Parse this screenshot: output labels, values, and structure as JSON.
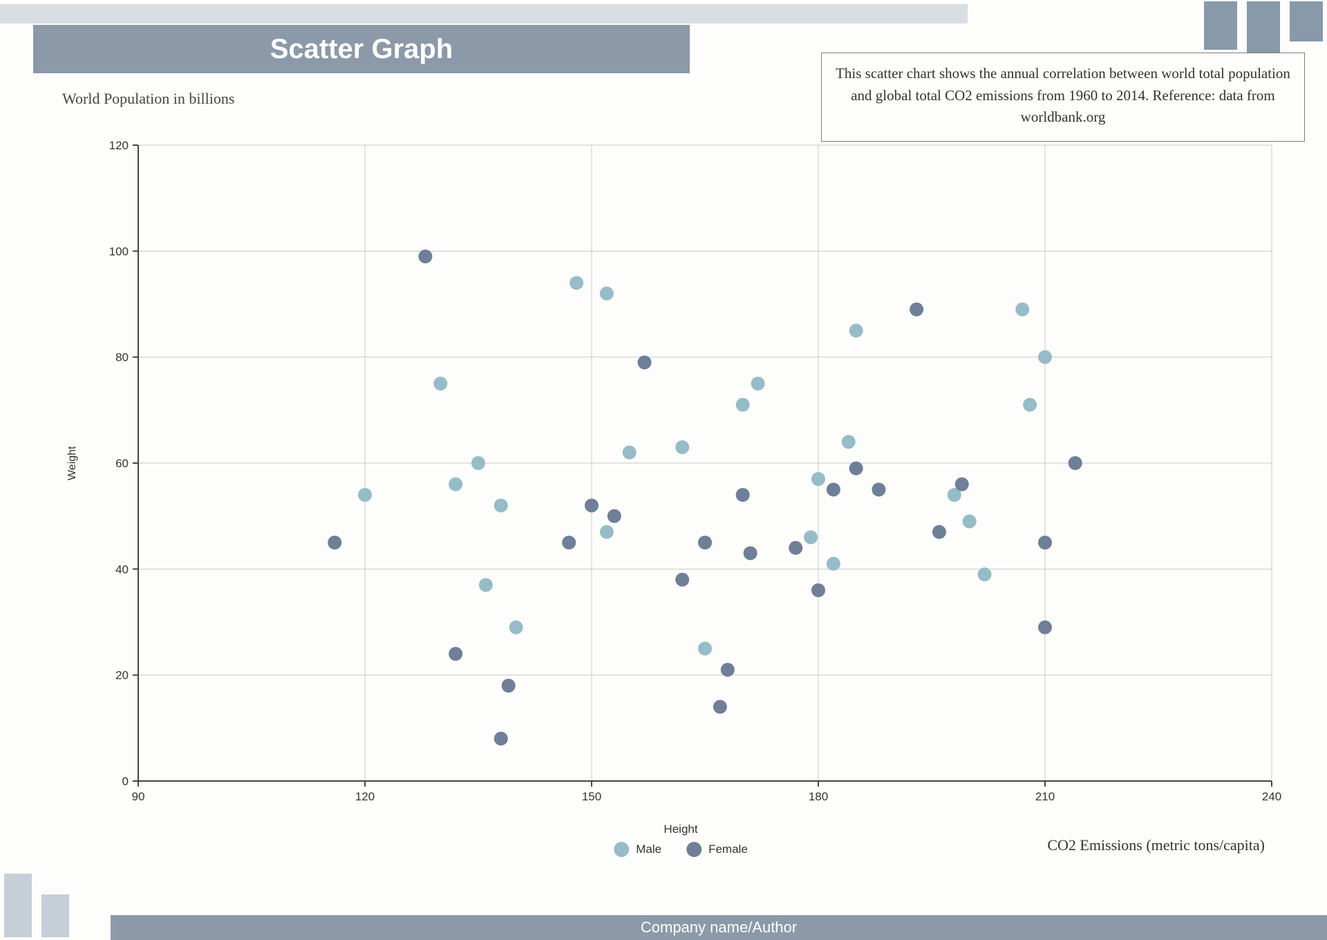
{
  "title": "Scatter Graph",
  "subtitle": "World Population in billions",
  "description": "This scatter chart shows the annual correlation between world total population and global total CO2 emissions from 1960 to 2014. Reference: data from worldbank.org",
  "footer": "Company name/Author",
  "chart": {
    "type": "scatter",
    "xlabel": "Height",
    "ylabel": "Weight",
    "x_sub_label": "CO2 Emissions (metric tons/capita)",
    "xlim": [
      90,
      240
    ],
    "ylim": [
      0,
      120
    ],
    "xticks": [
      90,
      120,
      150,
      180,
      210,
      240
    ],
    "yticks": [
      0,
      20,
      40,
      60,
      80,
      100,
      120
    ],
    "tick_fontsize": 17,
    "tick_color": "#333333",
    "axis_color": "#444444",
    "grid_color": "#c9c9c9",
    "background_color": "#fdfdfb",
    "marker_radius": 10,
    "series": [
      {
        "name": "Male",
        "color": "#96bcc8",
        "points": [
          [
            120,
            54
          ],
          [
            130,
            75
          ],
          [
            132,
            56
          ],
          [
            135,
            60
          ],
          [
            136,
            37
          ],
          [
            138,
            52
          ],
          [
            140,
            29
          ],
          [
            148,
            94
          ],
          [
            152,
            92
          ],
          [
            152,
            47
          ],
          [
            155,
            62
          ],
          [
            162,
            63
          ],
          [
            165,
            25
          ],
          [
            170,
            71
          ],
          [
            172,
            75
          ],
          [
            179,
            46
          ],
          [
            180,
            57
          ],
          [
            182,
            41
          ],
          [
            184,
            64
          ],
          [
            185,
            85
          ],
          [
            198,
            54
          ],
          [
            200,
            49
          ],
          [
            202,
            39
          ],
          [
            207,
            89
          ],
          [
            208,
            71
          ],
          [
            210,
            80
          ]
        ]
      },
      {
        "name": "Female",
        "color": "#6e7f97",
        "points": [
          [
            116,
            45
          ],
          [
            128,
            99
          ],
          [
            132,
            24
          ],
          [
            138,
            8
          ],
          [
            139,
            18
          ],
          [
            147,
            45
          ],
          [
            150,
            52
          ],
          [
            153,
            50
          ],
          [
            157,
            79
          ],
          [
            162,
            38
          ],
          [
            165,
            45
          ],
          [
            167,
            14
          ],
          [
            168,
            21
          ],
          [
            170,
            54
          ],
          [
            171,
            43
          ],
          [
            177,
            44
          ],
          [
            180,
            36
          ],
          [
            182,
            55
          ],
          [
            185,
            59
          ],
          [
            188,
            55
          ],
          [
            193,
            89
          ],
          [
            196,
            47
          ],
          [
            199,
            56
          ],
          [
            210,
            45
          ],
          [
            210,
            29
          ],
          [
            214,
            60
          ]
        ]
      }
    ]
  },
  "colors": {
    "title_bar": "#8b99a9",
    "title_text": "#ffffff",
    "decor_light": "#d7dde3",
    "decor_mid": "#8899aa",
    "decor_bl": "#c6cfd8",
    "footer_text": "#ffffff"
  }
}
